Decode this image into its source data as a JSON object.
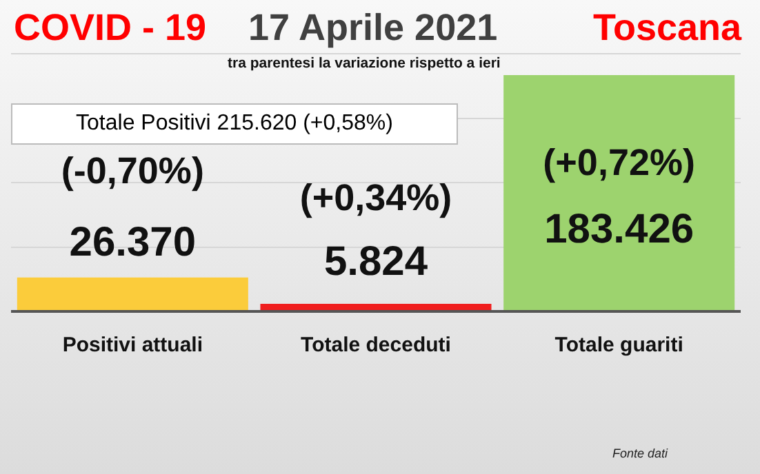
{
  "chart_data": {
    "type": "bar",
    "title": "COVID - 19",
    "subtitle": "tra parentesi la variazione rispetto a ieri",
    "categories": [
      "Positivi attuali",
      "Totale deceduti",
      "Totale guariti"
    ],
    "values": [
      26370,
      5824,
      183426
    ],
    "value_labels": [
      "26.370",
      "5.824",
      "183.426"
    ],
    "colors": [
      "#fbcc3b",
      "#f01e1e",
      "#9dd36e"
    ],
    "ylim": [
      0,
      200000
    ],
    "yticks": [
      {
        "value": 0,
        "label": null
      },
      {
        "value": 50000,
        "label": null
      },
      {
        "value": 100000,
        "label": null
      },
      {
        "value": 150000,
        "label": null
      },
      {
        "value": 200000,
        "label": null
      }
    ],
    "grid": "y",
    "tick_labels": "x",
    "legend": false,
    "annotations": [
      "17 Aprile 2021",
      "Toscana",
      "Totale Positivi 215.620 (+0,58%)",
      {
        "text": "(-0,70%)",
        "x": "Positivi attuali",
        "y": 26370
      },
      {
        "text": "(+0,34%)",
        "x": "Totale deceduti",
        "y": 5824
      },
      {
        "text": "(+0,72%)",
        "x": "Totale guariti",
        "y": 183426
      },
      "Fonte dati"
    ]
  }
}
